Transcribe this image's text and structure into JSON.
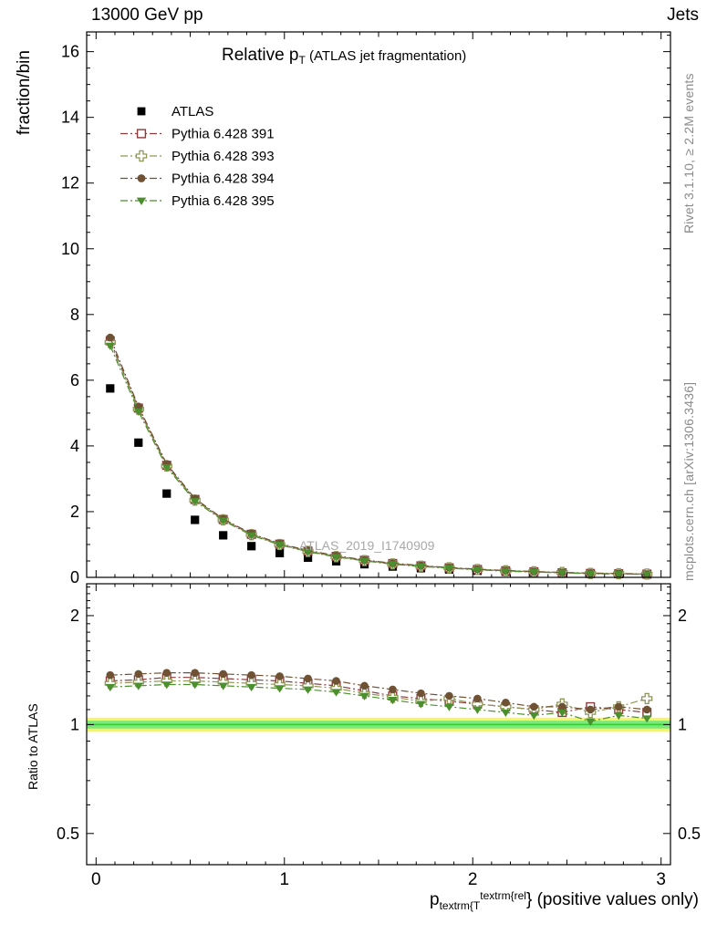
{
  "header": {
    "left": "13000 GeV pp",
    "right": "Jets"
  },
  "main_panel": {
    "title_main": "Relative p",
    "title_sub": "T",
    "title_suffix": " (ATLAS jet fragmentation)",
    "ylabel": "fraction/bin",
    "watermark": "ATLAS_2019_I1740909"
  },
  "ratio_panel": {
    "ylabel": "Ratio to ATLAS"
  },
  "xaxis": {
    "title_main": "p",
    "title_sub": "textrm{T",
    "title_sup": "textrm{rel",
    "title_rest": "} (positive values only)"
  },
  "sidebar": {
    "top": "Rivet 3.1.10, ≥ 2.2M events",
    "bottom": "mcplots.cern.ch [arXiv:1306.3436]"
  },
  "chart_data": {
    "type": "line",
    "title": "Relative pT (ATLAS jet fragmentation)",
    "xlabel": "pT^rel (positive values only)",
    "ylabel": "fraction/bin",
    "ratio_ylabel": "Ratio to ATLAS",
    "xlim": [
      -0.05,
      3.05
    ],
    "ylim_main": [
      0,
      16.6
    ],
    "ylim_ratio": [
      0.41,
      2.45
    ],
    "ratio_scale": "log",
    "grid": false,
    "legend_position": "top-left-inside",
    "x": [
      0.075,
      0.225,
      0.375,
      0.525,
      0.675,
      0.825,
      0.975,
      1.125,
      1.275,
      1.425,
      1.575,
      1.725,
      1.875,
      2.025,
      2.175,
      2.325,
      2.475,
      2.625,
      2.775,
      2.925
    ],
    "series": [
      {
        "name": "ATLAS",
        "marker": "square-filled",
        "color": "#000000",
        "line": false,
        "values": [
          5.75,
          4.1,
          2.55,
          1.75,
          1.28,
          0.95,
          0.74,
          0.6,
          0.49,
          0.4,
          0.33,
          0.28,
          0.24,
          0.2,
          0.17,
          0.15,
          0.13,
          0.11,
          0.1,
          0.09
        ]
      },
      {
        "name": "Pythia 6.428 391",
        "marker": "square-open",
        "color": "#8b3a3e",
        "line": true,
        "values": [
          7.2,
          5.15,
          3.41,
          2.37,
          1.76,
          1.31,
          1.01,
          0.8,
          0.64,
          0.52,
          0.42,
          0.35,
          0.29,
          0.24,
          0.2,
          0.17,
          0.14,
          0.12,
          0.11,
          0.1
        ],
        "ratio": [
          1.32,
          1.33,
          1.35,
          1.35,
          1.34,
          1.33,
          1.32,
          1.3,
          1.28,
          1.24,
          1.2,
          1.18,
          1.16,
          1.14,
          1.12,
          1.1,
          1.08,
          1.12,
          1.1,
          1.08
        ]
      },
      {
        "name": "Pythia 6.428 393",
        "marker": "cross-open",
        "color": "#8f9655",
        "line": true,
        "values": [
          7.15,
          5.12,
          3.39,
          2.35,
          1.75,
          1.3,
          1.0,
          0.79,
          0.63,
          0.51,
          0.41,
          0.34,
          0.29,
          0.24,
          0.2,
          0.17,
          0.15,
          0.12,
          0.11,
          0.1
        ],
        "ratio": [
          1.3,
          1.31,
          1.32,
          1.32,
          1.31,
          1.3,
          1.29,
          1.28,
          1.26,
          1.22,
          1.19,
          1.16,
          1.18,
          1.14,
          1.12,
          1.1,
          1.14,
          1.08,
          1.12,
          1.18
        ]
      },
      {
        "name": "Pythia 6.428 394",
        "marker": "circle-filled",
        "color": "#6f5233",
        "line": true,
        "values": [
          7.3,
          5.2,
          3.45,
          2.4,
          1.78,
          1.33,
          1.03,
          0.82,
          0.66,
          0.53,
          0.43,
          0.36,
          0.3,
          0.25,
          0.21,
          0.18,
          0.15,
          0.13,
          0.12,
          0.1
        ],
        "ratio": [
          1.37,
          1.38,
          1.39,
          1.39,
          1.38,
          1.37,
          1.36,
          1.34,
          1.32,
          1.28,
          1.25,
          1.22,
          1.2,
          1.18,
          1.15,
          1.12,
          1.12,
          1.1,
          1.12,
          1.1
        ]
      },
      {
        "name": "Pythia 6.428 395",
        "marker": "triangle-down-filled",
        "color": "#4c8f2e",
        "line": true,
        "values": [
          7.05,
          5.05,
          3.35,
          2.32,
          1.73,
          1.28,
          0.99,
          0.78,
          0.62,
          0.5,
          0.4,
          0.33,
          0.28,
          0.23,
          0.19,
          0.16,
          0.14,
          0.11,
          0.1,
          0.09
        ],
        "ratio": [
          1.27,
          1.28,
          1.29,
          1.29,
          1.28,
          1.27,
          1.26,
          1.25,
          1.23,
          1.2,
          1.17,
          1.14,
          1.12,
          1.1,
          1.08,
          1.06,
          1.08,
          1.02,
          1.06,
          1.04
        ]
      }
    ],
    "band": {
      "yellow": [
        0.955,
        1.045
      ],
      "yellow_color": "#f7f566",
      "green": [
        0.975,
        1.025
      ],
      "green_color": "#7be87b",
      "line": 1.0,
      "line_color": "#33cc33"
    },
    "axes": {
      "yticks_main": {
        "labels": [
          "16",
          "14",
          "12",
          "10",
          "8",
          "6",
          "4",
          "2",
          "0"
        ],
        "values": [
          16,
          14,
          12,
          10,
          8,
          6,
          4,
          2,
          0
        ]
      },
      "yticks_ratio": {
        "labels": [
          "2",
          "1",
          "0.5"
        ],
        "values": [
          2,
          1,
          0.5
        ]
      },
      "xticks": {
        "labels": [
          "0",
          "1",
          "2",
          "3"
        ],
        "values": [
          0,
          1,
          2,
          3
        ]
      }
    }
  }
}
